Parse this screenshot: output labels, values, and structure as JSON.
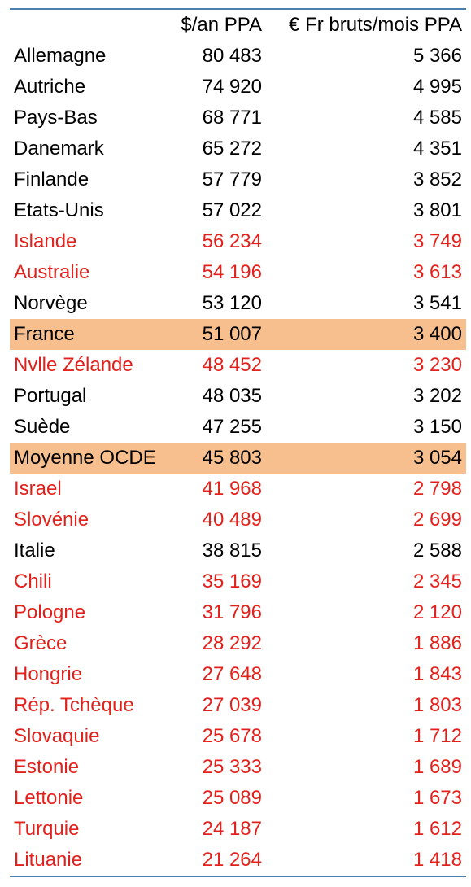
{
  "table": {
    "header": [
      "$/an PPA",
      "€ Fr bruts/mois PPA"
    ],
    "rows": [
      {
        "cells": [
          "Allemagne",
          "80 483",
          "5 366"
        ],
        "color": "#000000"
      },
      {
        "cells": [
          "Autriche",
          "74 920",
          "4 995"
        ],
        "color": "#000000"
      },
      {
        "cells": [
          "Pays-Bas",
          "68 771",
          "4 585"
        ],
        "color": "#000000"
      },
      {
        "cells": [
          "Danemark",
          "65 272",
          "4 351"
        ],
        "color": "#000000"
      },
      {
        "cells": [
          "Finlande",
          "57 779",
          "3 852"
        ],
        "color": "#000000"
      },
      {
        "cells": [
          "Etats-Unis",
          "57 022",
          "3 801"
        ],
        "color": "#000000"
      },
      {
        "cells": [
          "Islande",
          "56 234",
          "3 749"
        ],
        "color": "#e3211c"
      },
      {
        "cells": [
          "Australie",
          "54 196",
          "3 613"
        ],
        "color": "#e3211c"
      },
      {
        "cells": [
          "Norvège",
          "53 120",
          "3 541"
        ],
        "color": "#000000"
      },
      {
        "cells": [
          "France",
          "51 007",
          "3 400"
        ],
        "color": "#000000",
        "highlight": "#f8bf8e"
      },
      {
        "cells": [
          "Nvlle Zélande",
          "48 452",
          "3 230"
        ],
        "color": "#e3211c"
      },
      {
        "cells": [
          "Portugal",
          "48 035",
          "3 202"
        ],
        "color": "#000000"
      },
      {
        "cells": [
          "Suède",
          "47 255",
          "3 150"
        ],
        "color": "#000000"
      },
      {
        "cells": [
          "Moyenne OCDE",
          "45 803",
          "3 054"
        ],
        "color": "#000000",
        "highlight": "#f8bf8e"
      },
      {
        "cells": [
          "Israel",
          "41 968",
          "2 798"
        ],
        "color": "#e3211c"
      },
      {
        "cells": [
          "Slovénie",
          "40 489",
          "2 699"
        ],
        "color": "#e3211c"
      },
      {
        "cells": [
          "Italie",
          "38 815",
          "2 588"
        ],
        "color": "#000000"
      },
      {
        "cells": [
          "Chili",
          "35 169",
          "2 345"
        ],
        "color": "#e3211c"
      },
      {
        "cells": [
          "Pologne",
          "31 796",
          "2 120"
        ],
        "color": "#e3211c"
      },
      {
        "cells": [
          "Grèce",
          "28 292",
          "1 886"
        ],
        "color": "#e3211c"
      },
      {
        "cells": [
          "Hongrie",
          "27 648",
          "1 843"
        ],
        "color": "#e3211c"
      },
      {
        "cells": [
          "Rép. Tchèque",
          "27 039",
          "1 803"
        ],
        "color": "#e3211c"
      },
      {
        "cells": [
          "Slovaquie",
          "25 678",
          "1 712"
        ],
        "color": "#e3211c"
      },
      {
        "cells": [
          "Estonie",
          "25 333",
          "1 689"
        ],
        "color": "#e3211c"
      },
      {
        "cells": [
          "Lettonie",
          "25 089",
          "1 673"
        ],
        "color": "#e3211c"
      },
      {
        "cells": [
          "Turquie",
          "24 187",
          "1 612"
        ],
        "color": "#e3211c"
      },
      {
        "cells": [
          "Lituanie",
          "21 264",
          "1 418"
        ],
        "color": "#e3211c"
      }
    ]
  }
}
